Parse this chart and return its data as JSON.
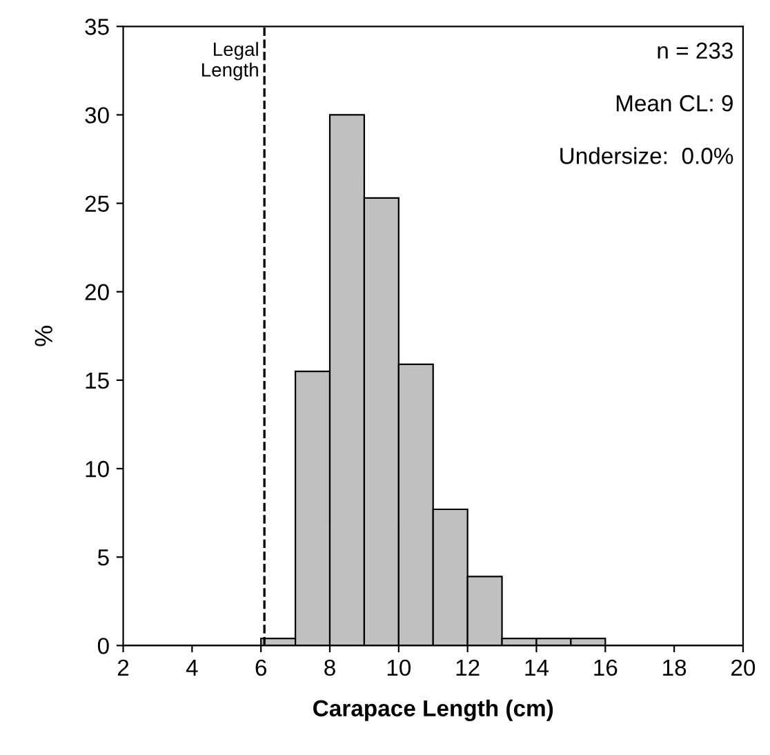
{
  "chart_data": {
    "type": "histogram",
    "xlabel": "Carapace Length (cm)",
    "ylabel": "%",
    "bins": [
      2,
      3,
      4,
      5,
      6,
      7,
      8,
      9,
      10,
      11,
      12,
      13,
      14,
      15,
      16,
      17,
      18,
      19,
      20
    ],
    "values": [
      0,
      0,
      0,
      0,
      0.4,
      15.5,
      30,
      25.3,
      15.9,
      7.7,
      3.9,
      0.4,
      0.4,
      0.4,
      0,
      0,
      0,
      0
    ],
    "color": "#c0c0c0",
    "xlim": [
      2,
      20
    ],
    "xticks": [
      2,
      4,
      6,
      8,
      10,
      12,
      14,
      16,
      18,
      20
    ],
    "ylim": [
      0,
      35
    ],
    "yticks": [
      0,
      5,
      10,
      15,
      20,
      25,
      30,
      35
    ],
    "grid": false,
    "ref_lines": [
      {
        "axis": "x",
        "value": 6.1,
        "label": "Legal\nLength",
        "line_style": "dashed",
        "color": "#000000"
      }
    ],
    "annotations": [
      "n = 233",
      "Mean CL: 9",
      "Undersize:  0.0%"
    ]
  }
}
